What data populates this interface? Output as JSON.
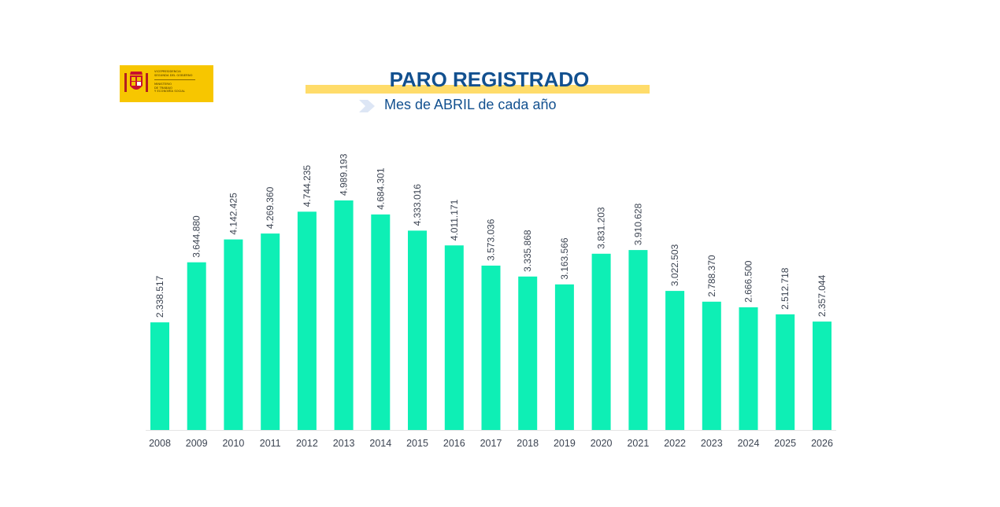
{
  "logo": {
    "line1": "VICEPRESIDENCIA",
    "line2": "SEGUNDA DEL GOBIERNO",
    "line3": "MINISTERIO",
    "line4": "DE TRABAJO",
    "line5": "Y ECONOMÍA SOCIAL"
  },
  "colors": {
    "bar": "#0eefb5",
    "title": "#12508f",
    "title_band": "#ffdc6a",
    "logo_background": "#f7c600"
  },
  "chart_data": {
    "type": "bar",
    "title": "PARO REGISTRADO",
    "subtitle": "Mes de ABRIL de cada año",
    "categories": [
      "2008",
      "2009",
      "2010",
      "2011",
      "2012",
      "2013",
      "2014",
      "2015",
      "2016",
      "2017",
      "2018",
      "2019",
      "2020",
      "2021",
      "2022",
      "2023",
      "2024",
      "2025",
      "2026"
    ],
    "values": [
      2338517,
      3644880,
      4142425,
      4269360,
      4744235,
      4989193,
      4684301,
      4333016,
      4011171,
      3573036,
      3335868,
      3163566,
      3831203,
      3910628,
      3022503,
      2788370,
      2666500,
      2512718,
      2357044
    ],
    "value_labels": [
      "2.338.517",
      "3.644.880",
      "4.142.425",
      "4.269.360",
      "4.744.235",
      "4.989.193",
      "4.684.301",
      "4.333.016",
      "4.011.171",
      "3.573.036",
      "3.335.868",
      "3.163.566",
      "3.831.203",
      "3.910.628",
      "3.022.503",
      "2.788.370",
      "2.666.500",
      "2.512.718",
      "2.357.044"
    ],
    "xlabel": "",
    "ylabel": "",
    "ylim": [
      0,
      5300000
    ],
    "grid": false,
    "legend": "none"
  }
}
